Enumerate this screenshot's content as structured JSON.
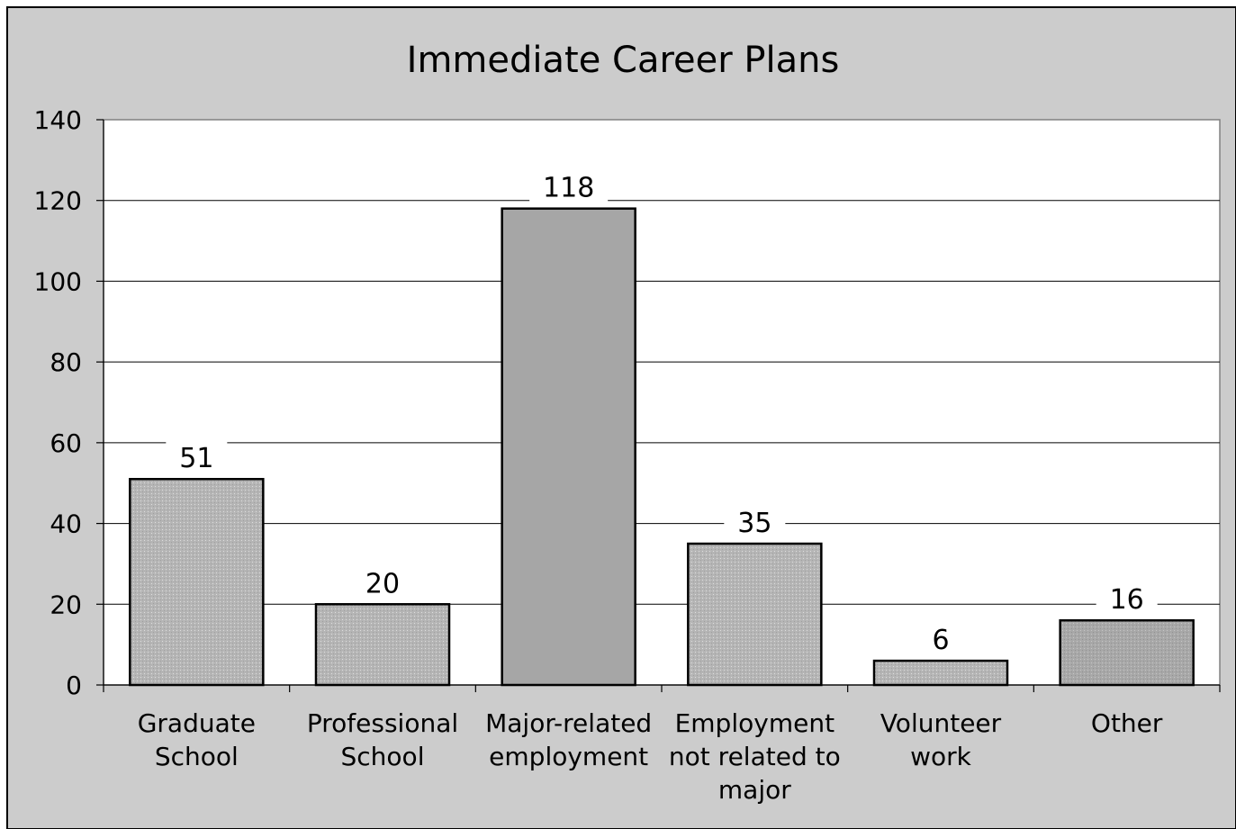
{
  "chart_data": {
    "type": "bar",
    "title": "Immediate Career Plans",
    "xlabel": "",
    "ylabel": "",
    "categories": [
      [
        "Graduate",
        "School"
      ],
      [
        "Professional",
        "School"
      ],
      [
        "Major-related",
        "employment"
      ],
      [
        "Employment",
        "not related to",
        "major"
      ],
      [
        "Volunteer",
        "work"
      ],
      [
        "Other"
      ]
    ],
    "values": [
      51,
      20,
      118,
      35,
      6,
      16
    ],
    "value_labels": [
      "51",
      "20",
      "118",
      "35",
      "6",
      "16"
    ],
    "ylim": [
      0,
      140
    ],
    "yticks": [
      "0",
      "20",
      "40",
      "60",
      "80",
      "100",
      "120",
      "140"
    ],
    "grid": true,
    "legend": "none",
    "colors": {
      "background": "#cccccc",
      "plot_area": "#ffffff",
      "bar": "#b3b3b3",
      "bar_highlight": "#a6a6a6",
      "bar_dark": "#a3a3a3",
      "outline": "#000000"
    }
  }
}
